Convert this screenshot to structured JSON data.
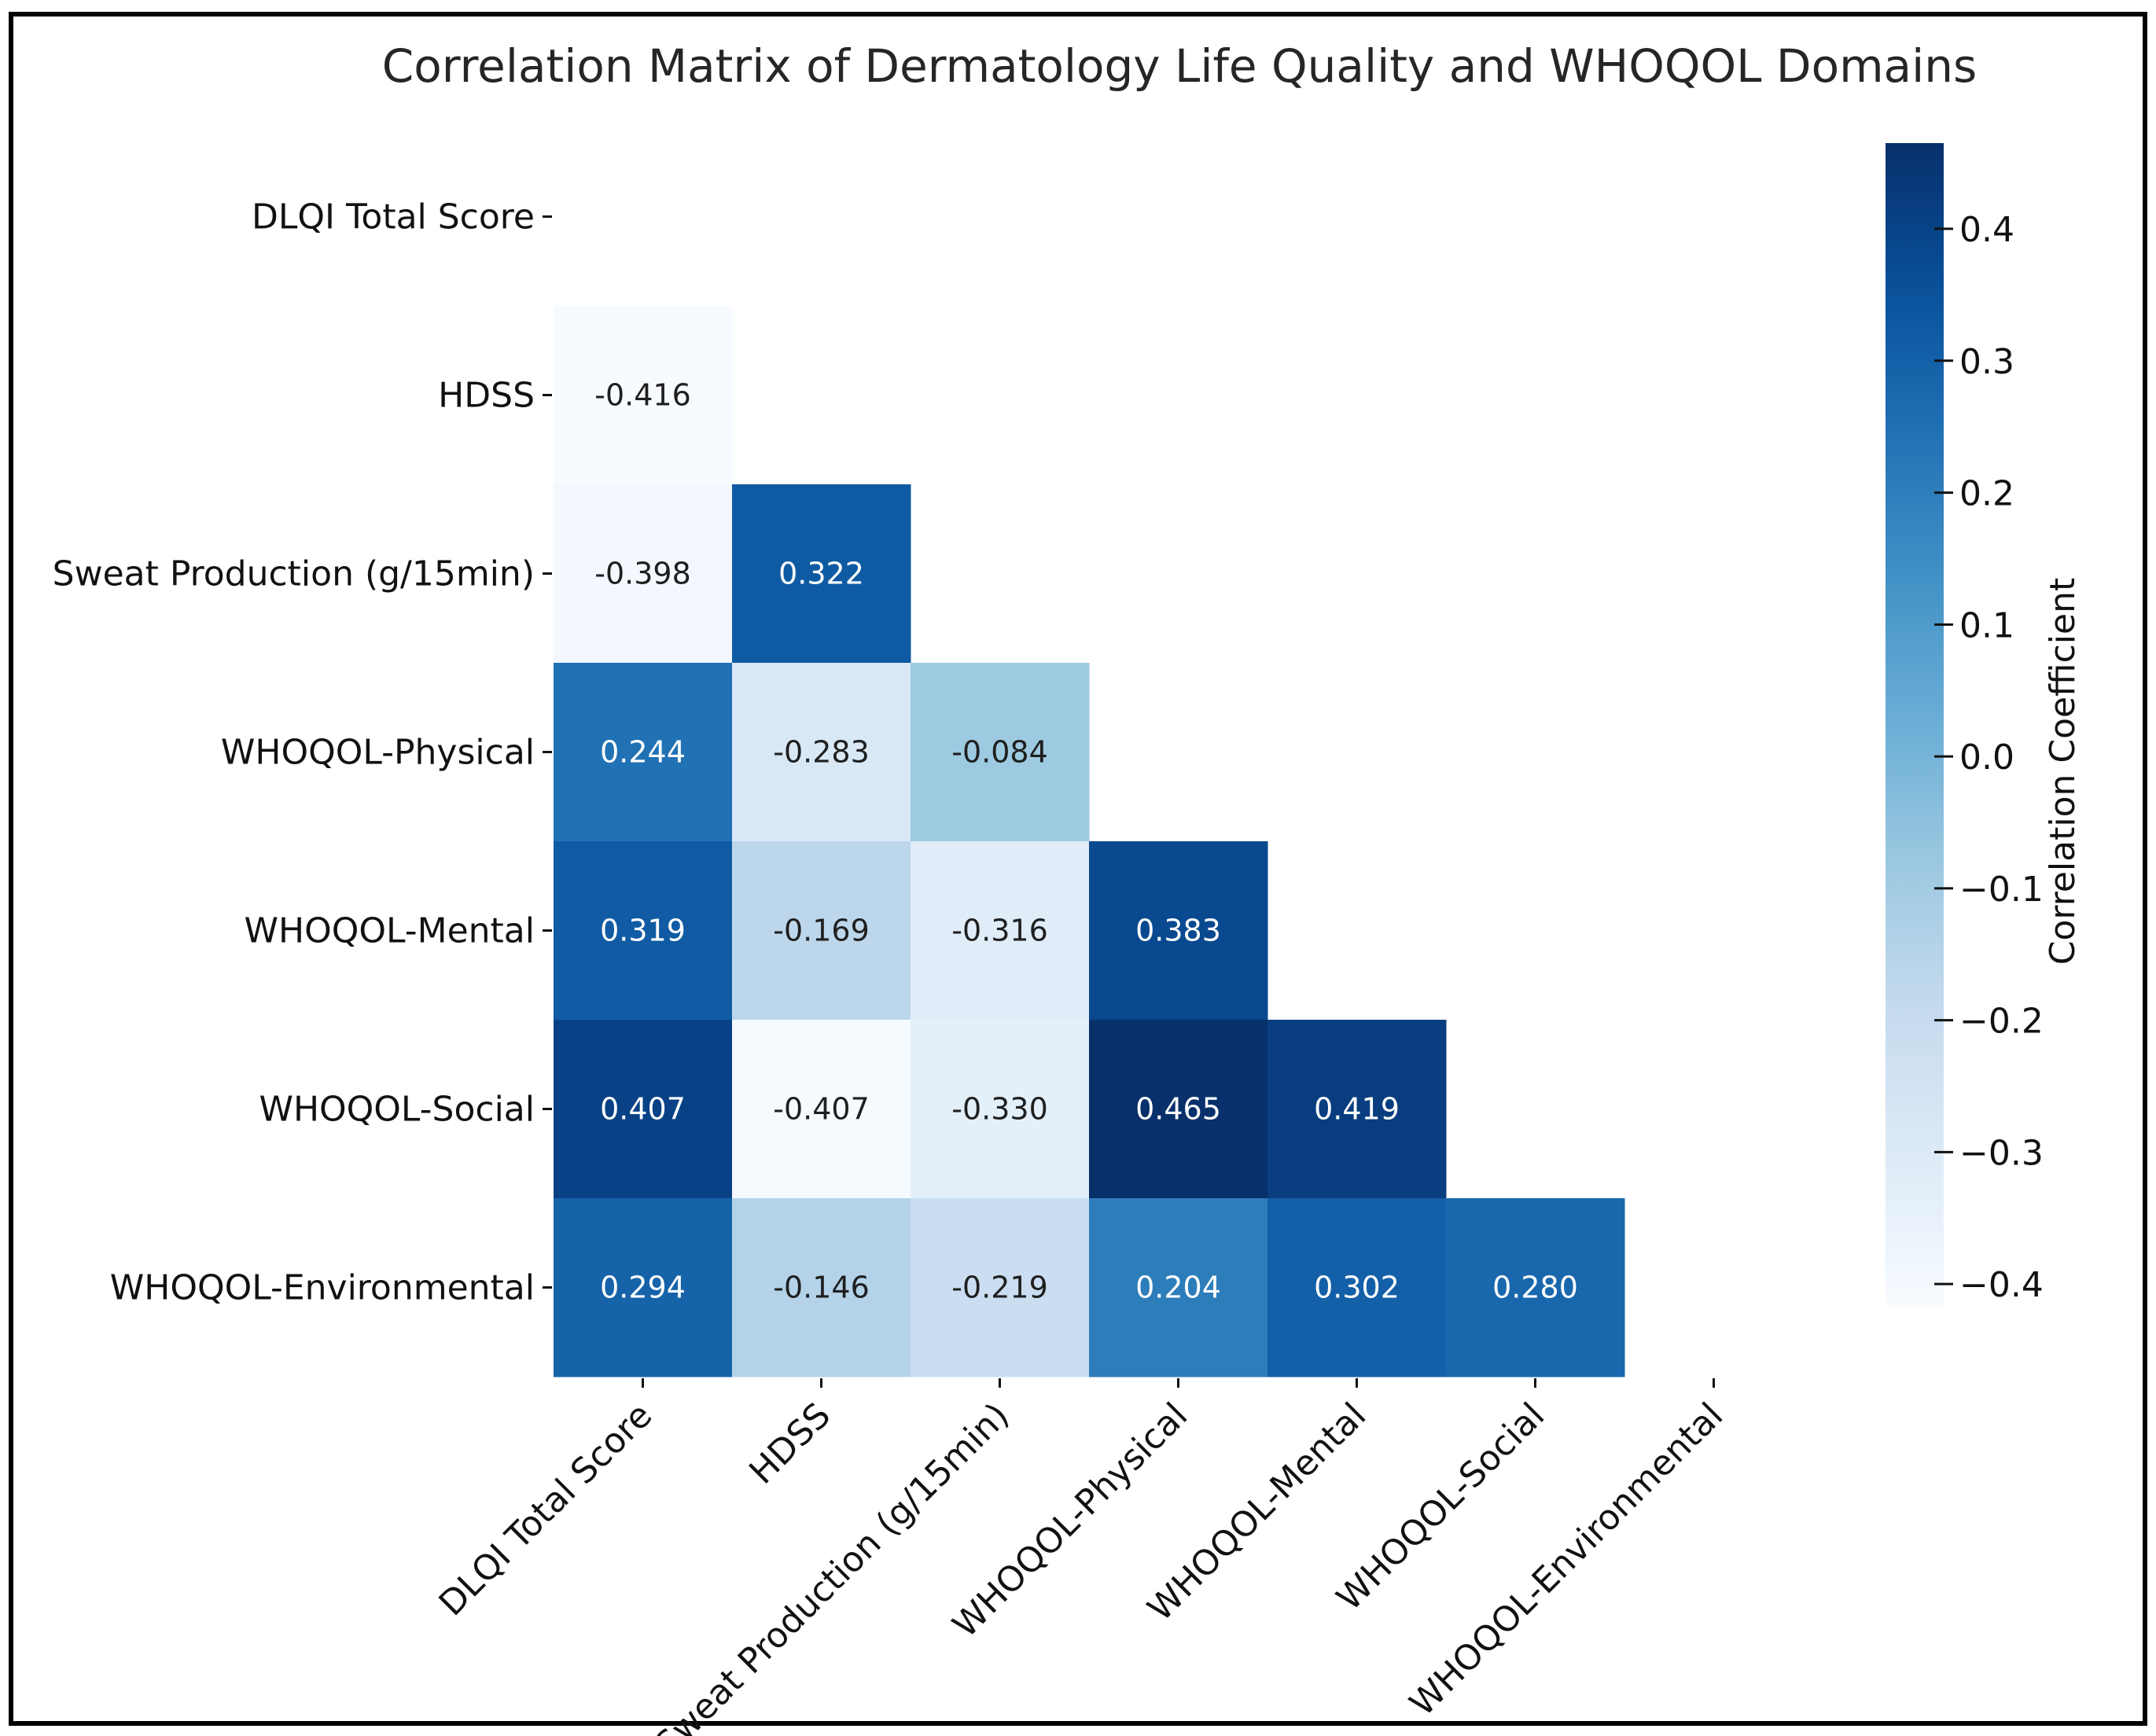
{
  "chart_data": {
    "type": "heatmap",
    "title": "Correlation Matrix of Dermatology Life Quality and WHOQOL Domains",
    "variables": [
      "DLQI Total Score",
      "HDSS",
      "Sweat Production (g/15min)",
      "WHOQOL-Physical",
      "WHOQOL-Mental",
      "WHOQOL-Social",
      "WHOQOL-Environmental"
    ],
    "matrix": [
      [
        null,
        null,
        null,
        null,
        null,
        null,
        null
      ],
      [
        -0.416,
        null,
        null,
        null,
        null,
        null,
        null
      ],
      [
        -0.398,
        0.322,
        null,
        null,
        null,
        null,
        null
      ],
      [
        0.244,
        -0.283,
        -0.084,
        null,
        null,
        null,
        null
      ],
      [
        0.319,
        -0.169,
        -0.316,
        0.383,
        null,
        null,
        null
      ],
      [
        0.407,
        -0.407,
        -0.33,
        0.465,
        0.419,
        null,
        null
      ],
      [
        0.294,
        -0.146,
        -0.219,
        0.204,
        0.302,
        0.28,
        null
      ]
    ],
    "cell_labels": [
      [
        "",
        "",
        "",
        "",
        "",
        "",
        ""
      ],
      [
        "-0.416",
        "",
        "",
        "",
        "",
        "",
        ""
      ],
      [
        "-0.398",
        "0.322",
        "",
        "",
        "",
        "",
        ""
      ],
      [
        "0.244",
        "-0.283",
        "-0.084",
        "",
        "",
        "",
        ""
      ],
      [
        "0.319",
        "-0.169",
        "-0.316",
        "0.383",
        "",
        "",
        ""
      ],
      [
        "0.407",
        "-0.407",
        "-0.330",
        "0.465",
        "0.419",
        "",
        ""
      ],
      [
        "0.294",
        "-0.146",
        "-0.219",
        "0.204",
        "0.302",
        "0.280",
        ""
      ]
    ],
    "mask": "upper triangle including diagonal",
    "colormap": "Blues",
    "colorbar": {
      "label": "Correlation Coefficient",
      "range": [
        -0.416,
        0.465
      ],
      "ticks": [
        0.4,
        0.3,
        0.2,
        0.1,
        0.0,
        -0.1,
        -0.2,
        -0.3,
        -0.4
      ],
      "tick_labels": [
        "0.4",
        "0.3",
        "0.2",
        "0.1",
        "0.0",
        "−0.1",
        "−0.2",
        "−0.3",
        "−0.4"
      ]
    },
    "colors": {
      "low": "#f7fbff",
      "high": "#08306b",
      "text_dark": "#1f1f1f",
      "text_light": "#ffffff",
      "frame": "#000000"
    }
  }
}
